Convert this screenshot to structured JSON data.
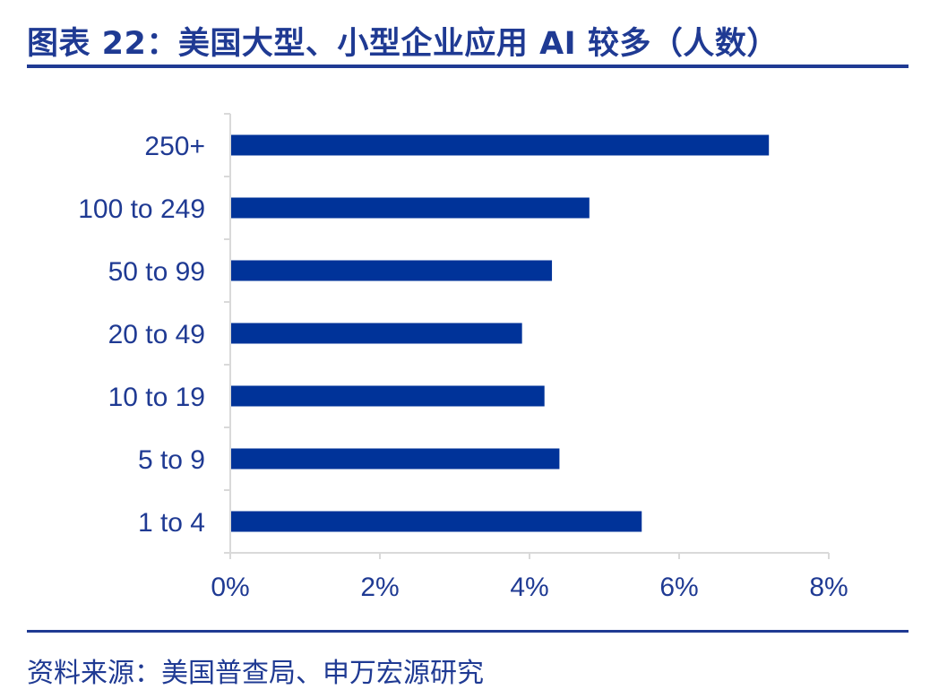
{
  "title": "图表 22：美国大型、小型企业应用 AI 较多（人数）",
  "source": "资料来源：美国普查局、申万宏源研究",
  "colors": {
    "bar": "#003399",
    "text": "#1f3a93",
    "axis": "#d9d9d9"
  },
  "chart_data": {
    "type": "bar",
    "orientation": "horizontal",
    "categories": [
      "250+",
      "100 to 249",
      "50 to 99",
      "20 to 49",
      "10 to 19",
      "5 to 9",
      "1 to 4"
    ],
    "values": [
      7.2,
      4.8,
      4.3,
      3.9,
      4.2,
      4.4,
      5.5
    ],
    "value_unit": "%",
    "xlim": [
      0,
      8
    ],
    "xticks": [
      "0%",
      "2%",
      "4%",
      "6%",
      "8%"
    ],
    "grid": false,
    "legend": "none"
  }
}
